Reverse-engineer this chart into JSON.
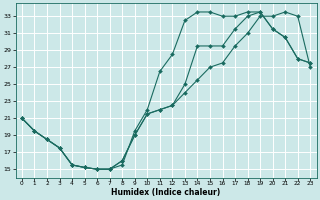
{
  "xlabel": "Humidex (Indice chaleur)",
  "bg_color": "#cce8e8",
  "grid_color": "#ffffff",
  "line_color": "#1a6b60",
  "xlim": [
    -0.5,
    23.5
  ],
  "ylim": [
    14.0,
    34.5
  ],
  "xticks": [
    0,
    1,
    2,
    3,
    4,
    5,
    6,
    7,
    8,
    9,
    10,
    11,
    12,
    13,
    14,
    15,
    16,
    17,
    18,
    19,
    20,
    21,
    22,
    23
  ],
  "yticks": [
    15,
    17,
    19,
    21,
    23,
    25,
    27,
    29,
    31,
    33
  ],
  "curve1_x": [
    0,
    1,
    2,
    3,
    4,
    5,
    6,
    7,
    8,
    9,
    10,
    11,
    12,
    13,
    14,
    15,
    16,
    17,
    18,
    19,
    20,
    21,
    22,
    23
  ],
  "curve1_y": [
    21,
    19.5,
    18.5,
    17.5,
    15.5,
    15.2,
    15.0,
    15.0,
    15.5,
    19.5,
    22.0,
    26.5,
    28.5,
    32.5,
    33.5,
    33.5,
    33.0,
    33.0,
    33.5,
    33.5,
    31.5,
    30.5,
    28.0,
    27.5
  ],
  "curve2_x": [
    0,
    1,
    2,
    3,
    4,
    5,
    6,
    7,
    8,
    9,
    10,
    11,
    12,
    13,
    14,
    15,
    16,
    17,
    18,
    19,
    20,
    21,
    22,
    23
  ],
  "curve2_y": [
    21,
    19.5,
    18.5,
    17.5,
    15.5,
    15.2,
    15.0,
    15.0,
    16.0,
    19.0,
    21.5,
    22.0,
    22.5,
    25.0,
    29.5,
    29.5,
    29.5,
    31.5,
    33.0,
    33.5,
    31.5,
    30.5,
    28.0,
    27.5
  ],
  "curve3_x": [
    0,
    1,
    2,
    3,
    4,
    5,
    6,
    7,
    8,
    9,
    10,
    11,
    12,
    13,
    14,
    15,
    16,
    17,
    18,
    19,
    20,
    21,
    22,
    23
  ],
  "curve3_y": [
    21,
    19.5,
    18.5,
    17.5,
    15.5,
    15.2,
    15.0,
    15.0,
    16.0,
    19.0,
    21.5,
    22.0,
    22.5,
    24.0,
    25.5,
    27.0,
    27.5,
    29.5,
    31.0,
    33.0,
    33.0,
    33.5,
    33.0,
    27.0
  ]
}
